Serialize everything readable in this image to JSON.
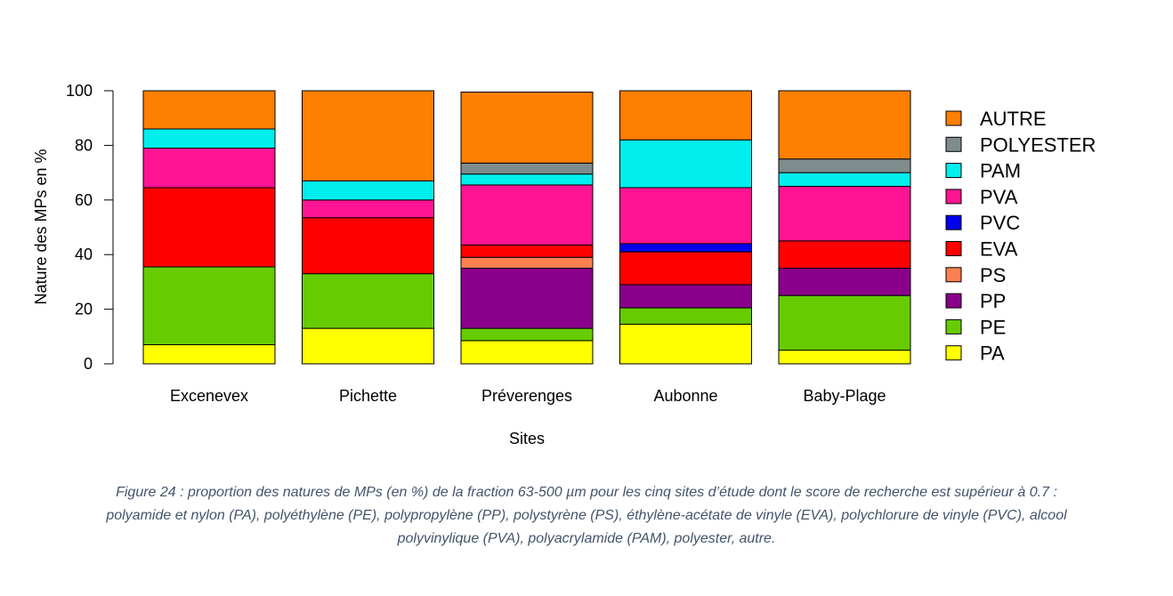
{
  "chart_data": {
    "type": "bar",
    "stacked": true,
    "xlabel": "Sites",
    "ylabel": "Nature des MPs en %",
    "ylim": [
      0,
      100
    ],
    "yticks": [
      0,
      20,
      40,
      60,
      80,
      100
    ],
    "categories": [
      "Excenevex",
      "Pichette",
      "Préverenges",
      "Aubonne",
      "Baby-Plage"
    ],
    "series": [
      {
        "name": "PA",
        "color": "#ffff00",
        "values": [
          7,
          13,
          8.5,
          14.5,
          5
        ]
      },
      {
        "name": "PE",
        "color": "#66cc00",
        "values": [
          28.5,
          20,
          4.5,
          6,
          20
        ]
      },
      {
        "name": "PP",
        "color": "#8b008b",
        "values": [
          0,
          0,
          22,
          8.5,
          10
        ]
      },
      {
        "name": "PS",
        "color": "#ff7f50",
        "values": [
          0,
          0,
          4,
          0,
          0
        ]
      },
      {
        "name": "EVA",
        "color": "#ff0000",
        "values": [
          29,
          20.5,
          4.5,
          12,
          10
        ]
      },
      {
        "name": "PVC",
        "color": "#0000ee",
        "values": [
          0,
          0,
          0,
          3,
          0
        ]
      },
      {
        "name": "PVA",
        "color": "#ff1493",
        "values": [
          14.5,
          6.5,
          22,
          20.5,
          20
        ]
      },
      {
        "name": "PAM",
        "color": "#00eeee",
        "values": [
          7,
          7,
          4,
          17.5,
          5
        ]
      },
      {
        "name": "POLYESTER",
        "color": "#7f8c8d",
        "values": [
          0,
          0,
          4,
          0,
          5
        ]
      },
      {
        "name": "AUTRE",
        "color": "#ff7f00",
        "values": [
          14,
          33,
          26,
          18,
          25
        ]
      }
    ],
    "legend_position": "right",
    "legend_order": [
      "AUTRE",
      "POLYESTER",
      "PAM",
      "PVA",
      "PVC",
      "EVA",
      "PS",
      "PP",
      "PE",
      "PA"
    ],
    "grid": false
  },
  "caption": "Figure 24 : proportion des natures de MPs (en %) de la fraction 63-500 µm pour les cinq sites d’étude dont le score de recherche est supérieur à 0.7 : polyamide et nylon (PA), polyéthylène (PE), polypropylène (PP), polystyrène (PS), éthylène-acétate de vinyle (EVA), polychlorure de vinyle (PVC), alcool polyvinylique (PVA), polyacrylamide (PAM), polyester, autre."
}
